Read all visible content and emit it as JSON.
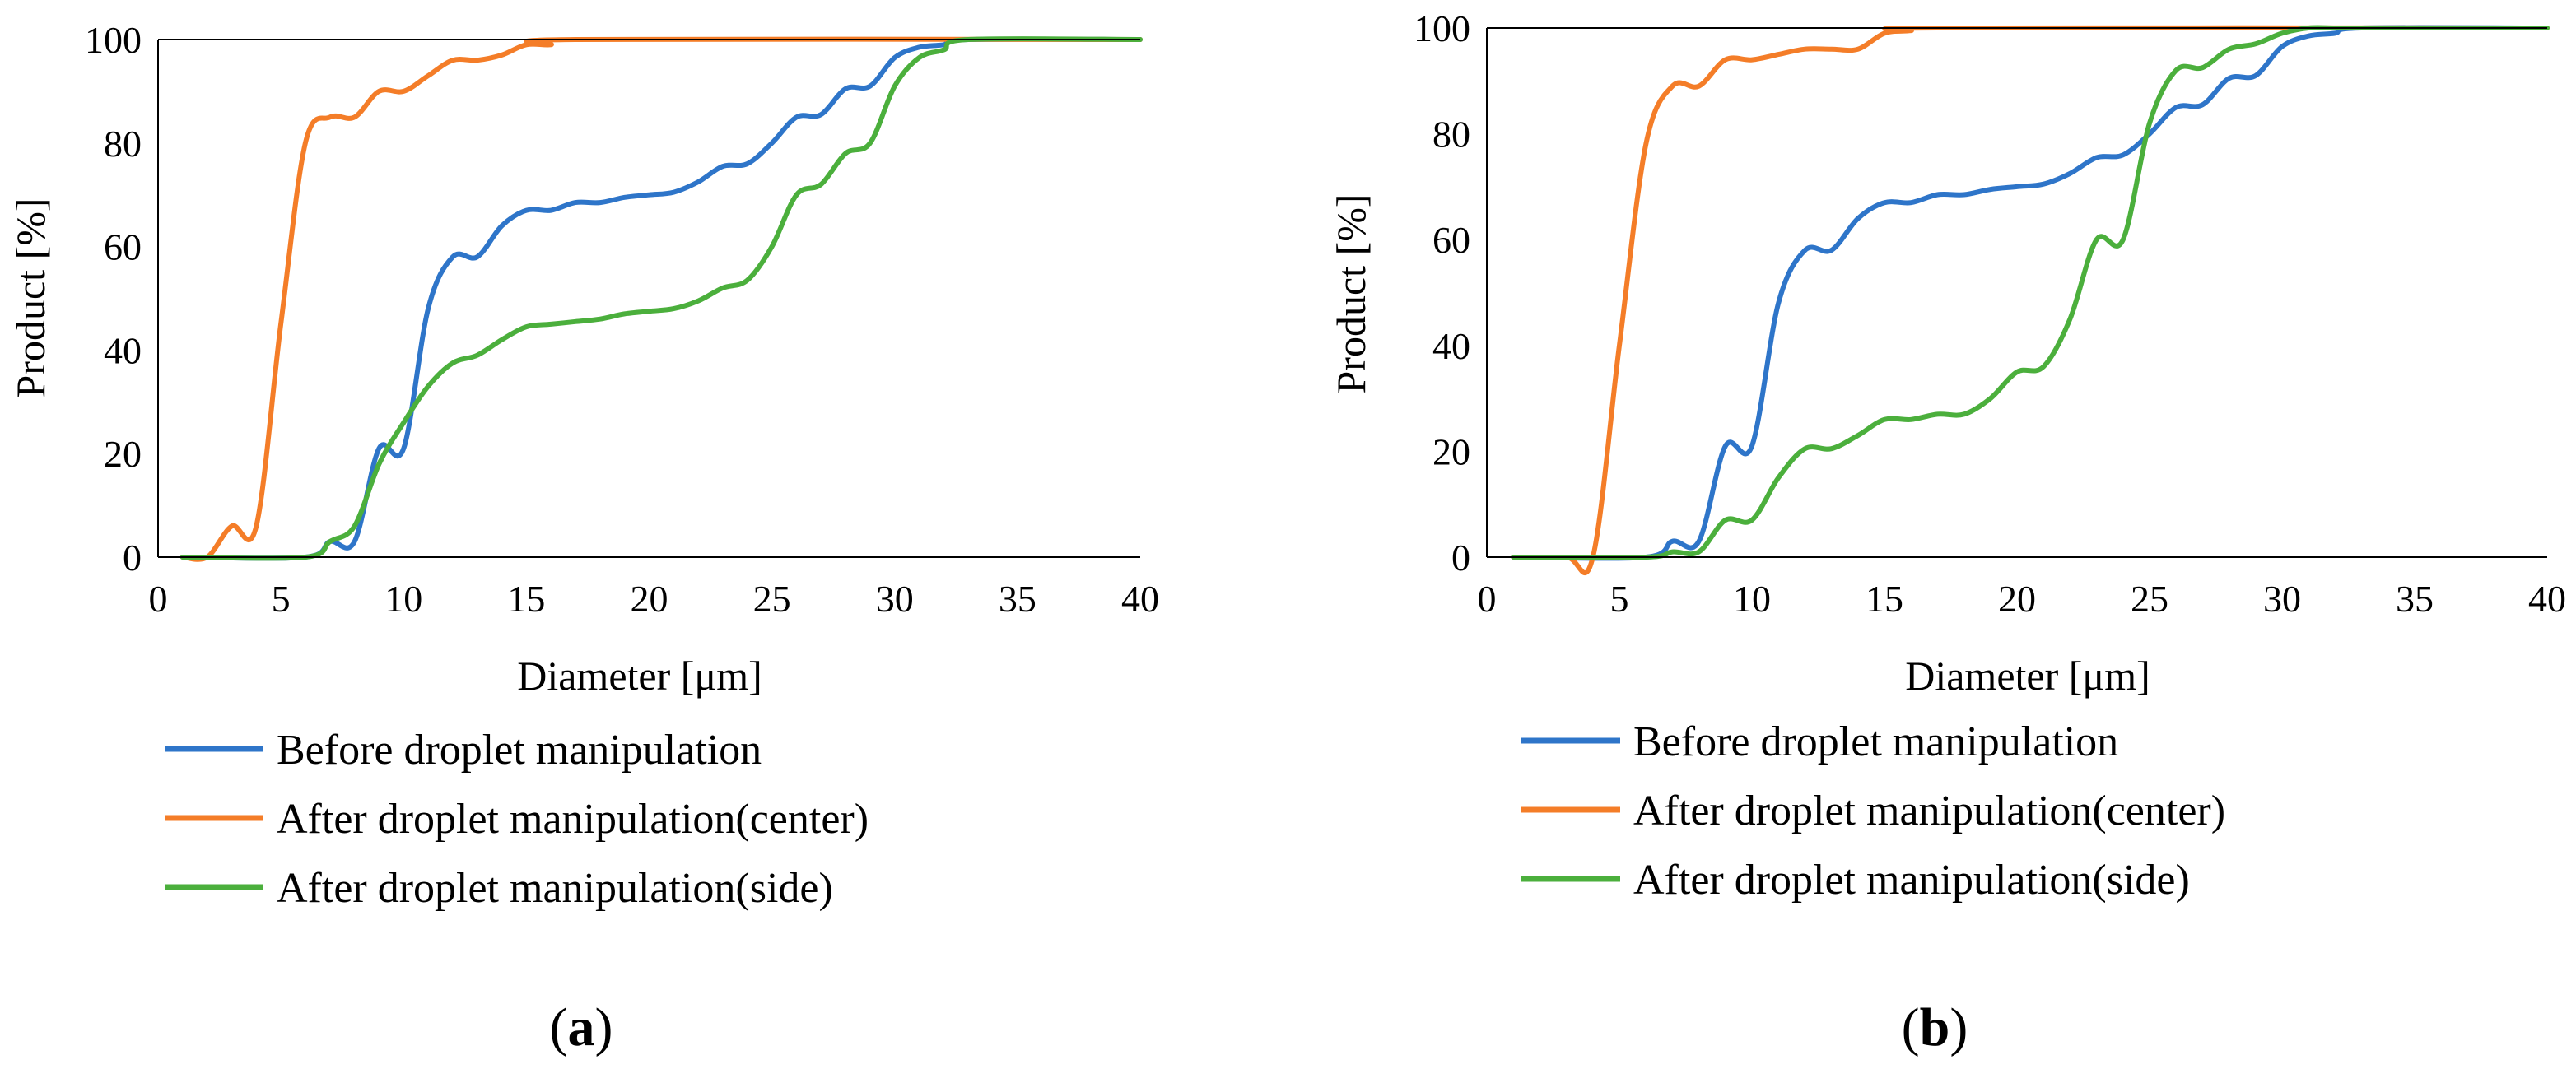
{
  "chart_data": [
    {
      "type": "line",
      "panel_label": "a",
      "xlabel": "Diameter [μm]",
      "ylabel": "Product [%]",
      "xlim": [
        0,
        40
      ],
      "ylim": [
        0,
        100
      ],
      "xticks": [
        0,
        5,
        10,
        15,
        20,
        25,
        30,
        35,
        40
      ],
      "yticks": [
        0,
        20,
        40,
        60,
        80,
        100
      ],
      "grid": false,
      "legend_position": "below",
      "series": [
        {
          "name": "Before droplet manipulation",
          "color": "#2E75C9",
          "x": [
            1,
            6,
            7,
            8,
            9,
            10,
            11,
            12,
            13,
            14,
            15,
            16,
            17,
            18,
            19,
            20,
            21,
            22,
            23,
            24,
            25,
            26,
            27,
            28,
            29,
            30,
            31,
            32,
            33,
            40
          ],
          "y": [
            0,
            0,
            3,
            3,
            21,
            21,
            48,
            58,
            58,
            64,
            67,
            67,
            68.5,
            68.5,
            69.5,
            70,
            70.5,
            72.5,
            75.5,
            76,
            80,
            85,
            85.5,
            90.5,
            91,
            96.5,
            98.5,
            99,
            100,
            100
          ]
        },
        {
          "name": "After droplet manipulation(center)",
          "color": "#F47D28",
          "x": [
            1,
            2,
            3,
            4,
            5,
            6,
            7,
            8,
            9,
            10,
            11,
            12,
            13,
            14,
            15,
            16,
            17,
            40
          ],
          "y": [
            0,
            0,
            6,
            6,
            45,
            80,
            85,
            85,
            90,
            90,
            93,
            96,
            96,
            97,
            99,
            99,
            100,
            100
          ]
        },
        {
          "name": "After droplet manipulation(side)",
          "color": "#4BAF3C",
          "x": [
            1,
            6,
            7,
            8,
            9,
            10,
            11,
            12,
            13,
            14,
            15,
            16,
            17,
            18,
            19,
            20,
            21,
            22,
            23,
            24,
            25,
            26,
            27,
            28,
            29,
            30,
            31,
            32,
            33,
            40
          ],
          "y": [
            0,
            0,
            3,
            6,
            18,
            26,
            33,
            37.5,
            39,
            42,
            44.5,
            45,
            45.5,
            46,
            47,
            47.5,
            48,
            49.5,
            52,
            53.5,
            60,
            70,
            72,
            78,
            80,
            91,
            96.5,
            98,
            100,
            100
          ]
        }
      ]
    },
    {
      "type": "line",
      "panel_label": "b",
      "xlabel": "Diameter [μm]",
      "ylabel": "Product [%]",
      "xlim": [
        0,
        40
      ],
      "ylim": [
        0,
        100
      ],
      "xticks": [
        0,
        5,
        10,
        15,
        20,
        25,
        30,
        35,
        40
      ],
      "yticks": [
        0,
        20,
        40,
        60,
        80,
        100
      ],
      "grid": false,
      "legend_position": "below",
      "series": [
        {
          "name": "Before droplet manipulation",
          "color": "#2E75C9",
          "x": [
            1,
            6,
            7,
            8,
            9,
            10,
            11,
            12,
            13,
            14,
            15,
            16,
            17,
            18,
            19,
            20,
            21,
            22,
            23,
            24,
            25,
            26,
            27,
            28,
            29,
            30,
            31,
            32,
            33,
            40
          ],
          "y": [
            0,
            0,
            3,
            3,
            21,
            21,
            48,
            58,
            58,
            64,
            67,
            67,
            68.5,
            68.5,
            69.5,
            70,
            70.5,
            72.5,
            75.5,
            76,
            80,
            85,
            85.5,
            90.5,
            91,
            96.5,
            98.5,
            99,
            100,
            100
          ]
        },
        {
          "name": "After droplet manipulation(center)",
          "color": "#F47D28",
          "x": [
            1,
            3,
            4,
            5,
            6,
            7,
            8,
            9,
            10,
            11,
            12,
            13,
            14,
            15,
            16,
            17,
            40
          ],
          "y": [
            0,
            0,
            0,
            40,
            78,
            89,
            89,
            94,
            94,
            95,
            96,
            96,
            96,
            99,
            99.5,
            100,
            100
          ]
        },
        {
          "name": "After droplet manipulation(side)",
          "color": "#4BAF3C",
          "x": [
            1,
            6,
            7,
            8,
            9,
            10,
            11,
            12,
            13,
            14,
            15,
            16,
            17,
            18,
            19,
            20,
            21,
            22,
            23,
            24,
            25,
            26,
            27,
            28,
            29,
            30,
            31,
            32,
            33,
            40
          ],
          "y": [
            0,
            0,
            1,
            1,
            7,
            7,
            15,
            20.5,
            20.5,
            23,
            26,
            26,
            27,
            27,
            30,
            35,
            36,
            45,
            60,
            60,
            82,
            92,
            92.5,
            96,
            97,
            99,
            100,
            100,
            100,
            100
          ]
        }
      ]
    }
  ]
}
